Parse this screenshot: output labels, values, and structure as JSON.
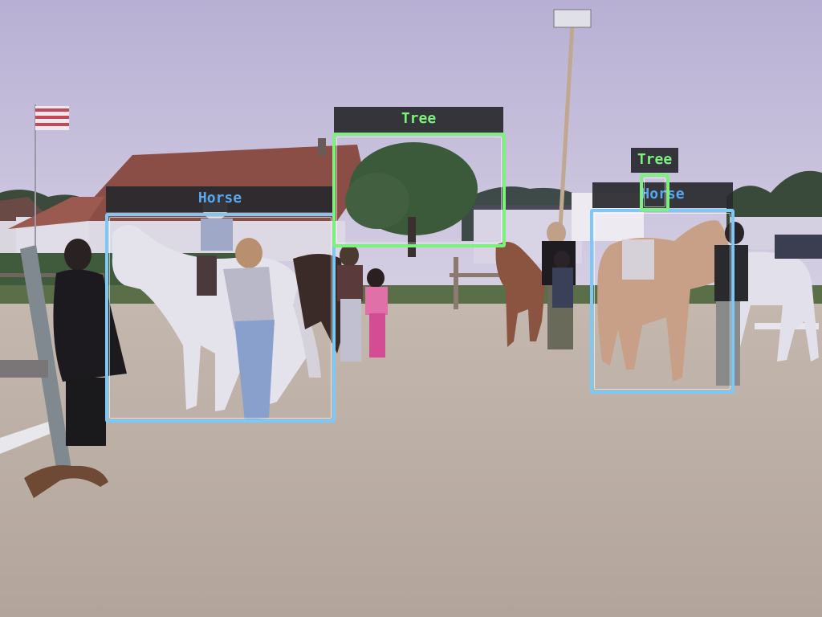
{
  "image": {
    "description_icon": "photo-scene",
    "sky_color": "#c8c2dc",
    "sand_color": "#b9ada4"
  },
  "detections": [
    {
      "label": "Horse",
      "color": "#7ec8f5",
      "text_color": "#58a8f0"
    },
    {
      "label": "Tree",
      "color": "#7ef07e",
      "text_color": "#7ef07e"
    },
    {
      "label": "Tree",
      "color": "#7ef07e",
      "text_color": "#7ef07e"
    },
    {
      "label": "Horse",
      "color": "#7ec8f5",
      "text_color": "#58a8f0"
    }
  ]
}
